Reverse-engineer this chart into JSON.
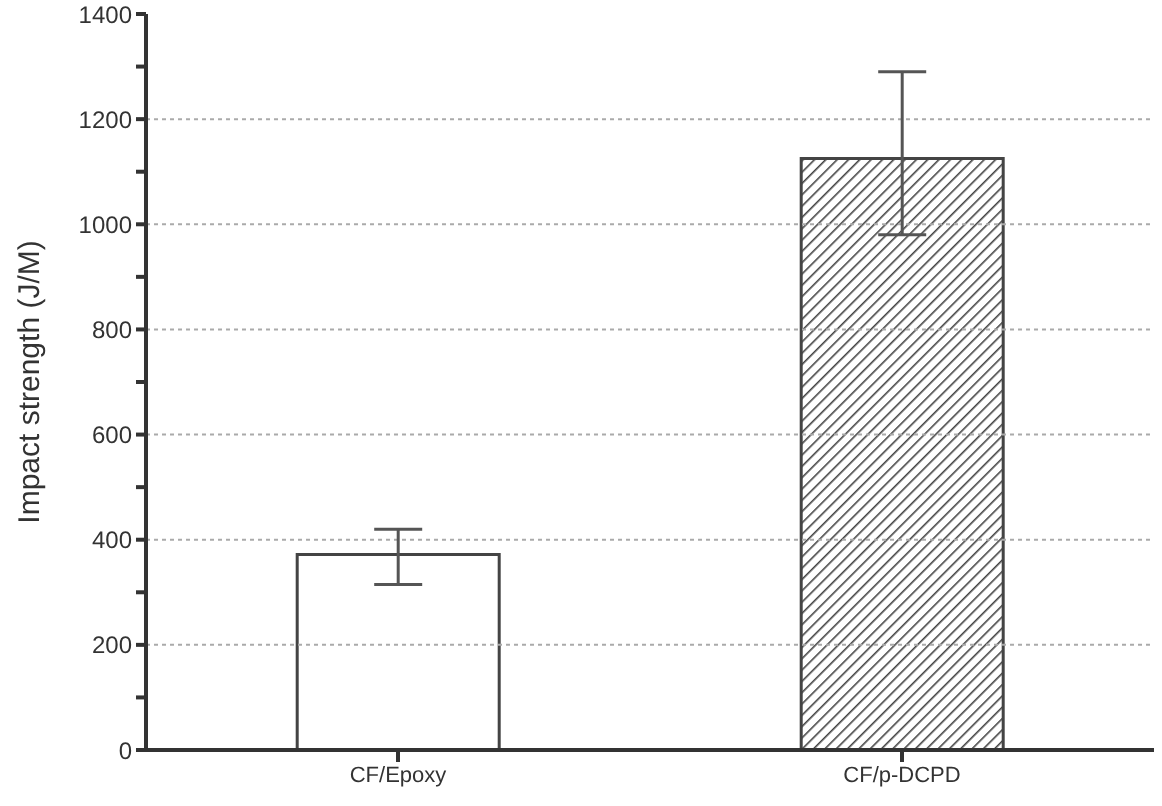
{
  "chart_data": {
    "type": "bar",
    "ylabel": "Impact strength (J/M)",
    "categories": [
      "CF/Epoxy",
      "CF/p-DCPD"
    ],
    "values": [
      372,
      1125
    ],
    "errors": [
      [
        315,
        420
      ],
      [
        980,
        1290
      ]
    ],
    "colors": [
      "#ffffff",
      "#444444"
    ],
    "ylim": [
      0,
      1400
    ],
    "yticks": [
      0,
      {
        "value": 100,
        "label": null
      },
      200,
      {
        "value": 300,
        "label": null
      },
      400,
      {
        "value": 500,
        "label": null
      },
      600,
      {
        "value": 700,
        "label": null
      },
      800,
      {
        "value": 900,
        "label": null
      },
      1000,
      {
        "value": 1100,
        "label": null
      },
      1200,
      {
        "value": 1300,
        "label": null
      },
      1400
    ],
    "grid": "y"
  }
}
